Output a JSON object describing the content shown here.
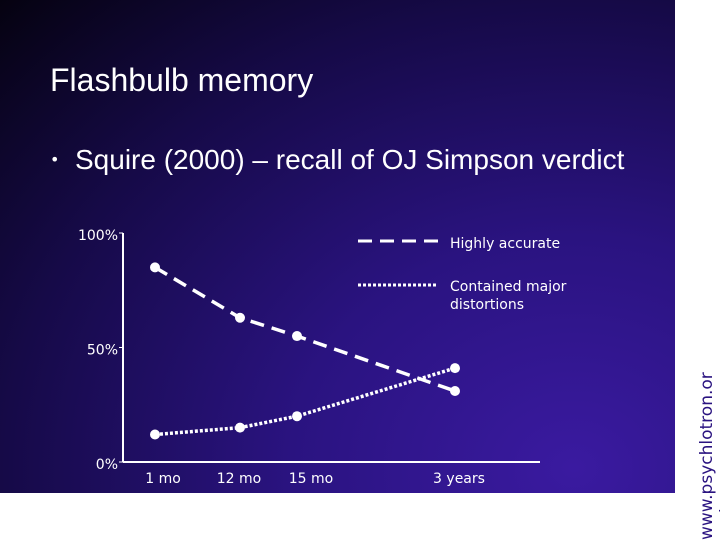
{
  "chart_data": {
    "type": "line",
    "title": "Flashbulb memory",
    "bullet": "Squire (2000) – recall of OJ Simpson verdict",
    "categories": [
      "1 mo",
      "12 mo",
      "15 mo",
      "3 years"
    ],
    "series": [
      {
        "name": "Highly accurate",
        "color": "#ffffff",
        "dash": "dashed",
        "values": [
          85,
          63,
          55,
          31
        ]
      },
      {
        "name": "Contained major distortions",
        "color": "#ffffff",
        "dash": "dotted",
        "values": [
          12,
          15,
          20,
          41
        ]
      }
    ],
    "ylim": [
      0,
      100
    ],
    "yticks": [
      {
        "value": 0,
        "label": "0%"
      },
      {
        "value": 50,
        "label": "50%"
      },
      {
        "value": 100,
        "label": "100%"
      }
    ]
  },
  "watermark": "www.psychlotron.org.uk"
}
